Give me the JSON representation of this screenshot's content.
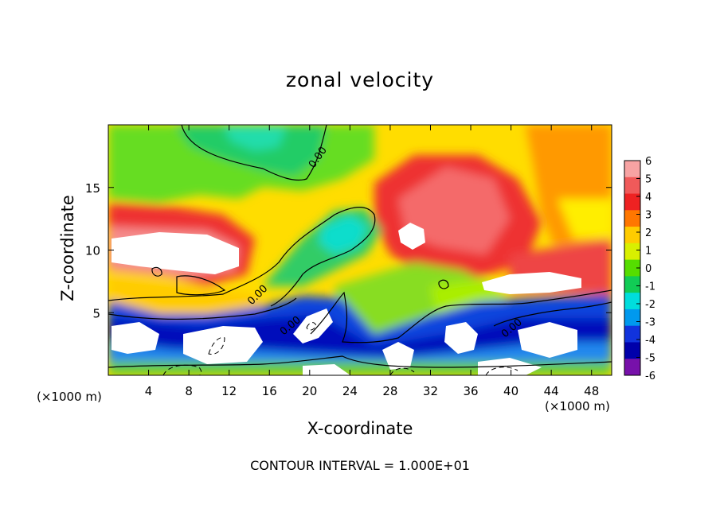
{
  "chart_data": {
    "type": "heatmap",
    "title": "zonal velocity",
    "xlabel": "X-coordinate",
    "ylabel": "Z-coordinate",
    "x_unit_left": "(×1000 m)",
    "x_unit_right": "(×1000 m)",
    "footer": "CONTOUR INTERVAL = 1.000E+01",
    "xlim": [
      0,
      50
    ],
    "ylim": [
      0,
      20
    ],
    "x_ticks": [
      4,
      8,
      12,
      16,
      20,
      24,
      28,
      32,
      36,
      40,
      44,
      48
    ],
    "y_ticks": [
      5,
      10,
      15
    ],
    "colorbar": {
      "ticks": [
        6,
        5,
        4,
        3,
        2,
        1,
        0,
        -1,
        -2,
        -3,
        -4,
        -5,
        -6
      ],
      "colors": [
        "#f7a3a3",
        "#f05a5a",
        "#ee2222",
        "#ff7700",
        "#ffcc00",
        "#d9f000",
        "#55dd00",
        "#11cc55",
        "#00dddd",
        "#0099ee",
        "#1133dd",
        "#0000aa",
        "#7711aa"
      ]
    },
    "contour_label": "0.00"
  }
}
